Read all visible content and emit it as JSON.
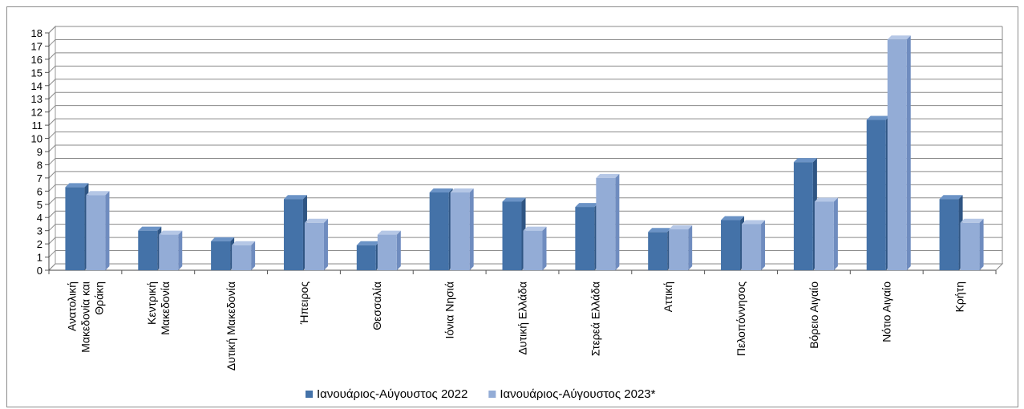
{
  "chart_data": {
    "type": "bar",
    "title": "",
    "xlabel": "",
    "ylabel": "",
    "ylim": [
      0,
      18
    ],
    "yticks": [
      0,
      1,
      2,
      3,
      4,
      5,
      6,
      7,
      8,
      9,
      10,
      11,
      12,
      13,
      14,
      15,
      16,
      17,
      18
    ],
    "grid": "horizontal",
    "legend_position": "bottom",
    "categories": [
      [
        "Ανατολική",
        "Μακεδονία και",
        "Θράκη"
      ],
      [
        "Κεντρική",
        "Μακεδονία"
      ],
      [
        "Δυτική Μακεδονία"
      ],
      [
        "Ήπειρος"
      ],
      [
        "Θεσσαλία"
      ],
      [
        "Ιόνια Νησιά"
      ],
      [
        "Δυτική Ελλάδα"
      ],
      [
        "Στερεά Ελλάδα"
      ],
      [
        "Αττική"
      ],
      [
        "Πελοπόννησος"
      ],
      [
        "Βόρειο Αιγαίο"
      ],
      [
        "Νότιο Αιγαίο"
      ],
      [
        "Κρήτη"
      ]
    ],
    "series": [
      {
        "name": "Ιανουάριος-Αύγουστος 2022",
        "color": "#4472a8",
        "values": [
          6.3,
          3.0,
          2.2,
          5.4,
          1.9,
          5.9,
          5.2,
          4.8,
          2.9,
          3.8,
          8.2,
          11.4,
          5.4
        ]
      },
      {
        "name": "Ιανουάριος-Αύγουστος 2023*",
        "color": "#93acd6",
        "values": [
          5.7,
          2.7,
          1.9,
          3.6,
          2.7,
          5.9,
          3.0,
          7.0,
          3.1,
          3.5,
          5.2,
          17.5,
          3.6
        ]
      }
    ]
  }
}
